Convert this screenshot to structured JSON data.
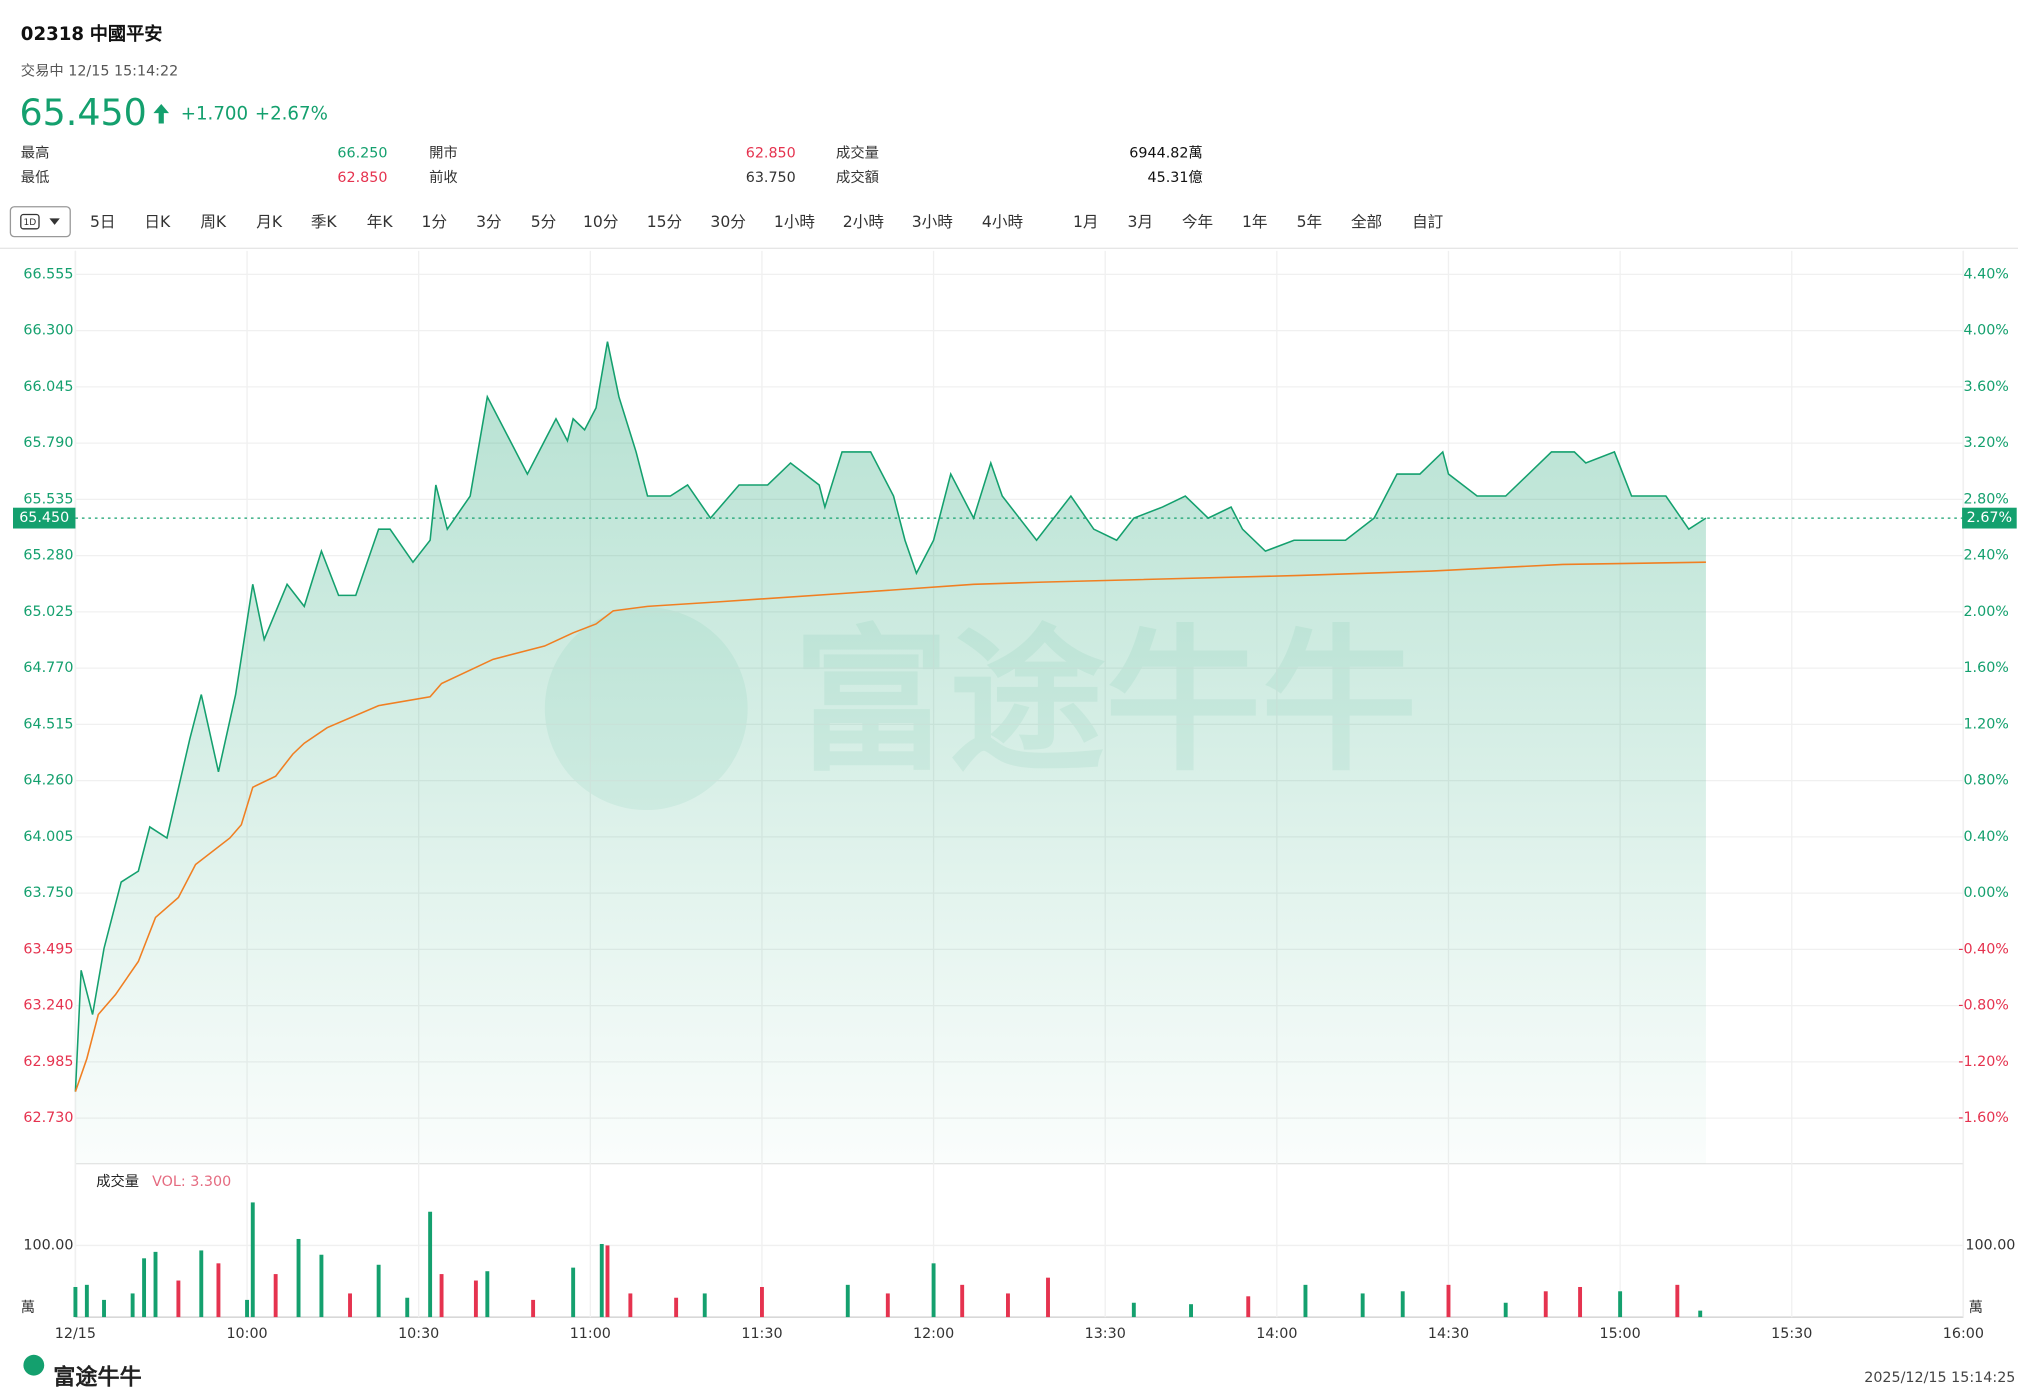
{
  "header": {
    "code": "02318",
    "name": "中國平安",
    "status": "交易中 12/15 15:14:22",
    "price": "65.450",
    "change": "+1.700",
    "change_pct": "+2.67%",
    "stats": [
      [
        "最高",
        "66.250",
        "開市",
        "62.850",
        "成交量",
        "6944.82萬"
      ],
      [
        "最低",
        "62.850",
        "前收",
        "63.750",
        "成交額",
        "45.31億"
      ]
    ]
  },
  "toolbar": {
    "selected": "1D",
    "buttons": [
      "5日",
      "日K",
      "周K",
      "月K",
      "季K",
      "年K",
      "1分",
      "3分",
      "5分",
      "10分",
      "15分",
      "30分",
      "1小時",
      "2小時",
      "3小時",
      "4小時",
      "1月",
      "3月",
      "今年",
      "1年",
      "5年",
      "全部",
      "自訂"
    ]
  },
  "chart_data": {
    "type": "line",
    "xlim": [
      0,
      330
    ],
    "xticks": [
      {
        "value": 0,
        "label": "12/15"
      },
      {
        "value": 30,
        "label": "10:00"
      },
      {
        "value": 60,
        "label": "10:30"
      },
      {
        "value": 90,
        "label": "11:00"
      },
      {
        "value": 120,
        "label": "11:30"
      },
      {
        "value": 150,
        "label": "12:00"
      },
      {
        "value": 180,
        "label": "13:30"
      },
      {
        "value": 210,
        "label": "14:00"
      },
      {
        "value": 240,
        "label": "14:30"
      },
      {
        "value": 270,
        "label": "15:00"
      },
      {
        "value": 300,
        "label": "15:30"
      },
      {
        "value": 330,
        "label": "16:00"
      }
    ],
    "ylim": [
      62.73,
      66.555
    ],
    "yticks": [
      {
        "value": 66.555,
        "label": "66.555"
      },
      {
        "value": 66.3,
        "label": "66.300"
      },
      {
        "value": 66.045,
        "label": "66.045"
      },
      {
        "value": 65.79,
        "label": "65.790"
      },
      {
        "value": 65.535,
        "label": "65.535"
      },
      {
        "value": 65.28,
        "label": "65.280"
      },
      {
        "value": 65.025,
        "label": "65.025"
      },
      {
        "value": 64.77,
        "label": "64.770"
      },
      {
        "value": 64.515,
        "label": "64.515"
      },
      {
        "value": 64.26,
        "label": "64.260"
      },
      {
        "value": 64.005,
        "label": "64.005"
      },
      {
        "value": 63.75,
        "label": "63.750"
      },
      {
        "value": 63.495,
        "label": "63.495"
      },
      {
        "value": 63.24,
        "label": "63.240"
      },
      {
        "value": 62.985,
        "label": "62.985"
      },
      {
        "value": 62.73,
        "label": "62.730"
      }
    ],
    "y2lim": [
      -1.6,
      4.4
    ],
    "y2ticks": [
      {
        "value": 4.4,
        "label": "4.40%"
      },
      {
        "value": 4,
        "label": "4.00%"
      },
      {
        "value": 3.6,
        "label": "3.60%"
      },
      {
        "value": 3.2,
        "label": "3.20%"
      },
      {
        "value": 2.8,
        "label": "2.80%"
      },
      {
        "value": 2.4,
        "label": "2.40%"
      },
      {
        "value": 2,
        "label": "2.00%"
      },
      {
        "value": 1.6,
        "label": "1.60%"
      },
      {
        "value": 1.2,
        "label": "1.20%"
      },
      {
        "value": 0.8,
        "label": "0.80%"
      },
      {
        "value": 0.4,
        "label": "0.40%"
      },
      {
        "value": 0,
        "label": "0.00%"
      },
      {
        "value": -0.4,
        "label": "-0.40%"
      },
      {
        "value": -0.8,
        "label": "-0.80%"
      },
      {
        "value": -1.2,
        "label": "-1.20%"
      },
      {
        "value": -1.6,
        "label": "-1.60%"
      }
    ],
    "current_pct_label": "2.67%",
    "grid": true,
    "up_color": "#14a06e",
    "down_color": "#e5334f",
    "series": [
      {
        "color": "#14a06e",
        "x": [
          0,
          1,
          3,
          5,
          8,
          11,
          13,
          16,
          20,
          22,
          25,
          28,
          31,
          33,
          37,
          40,
          43,
          46,
          49,
          53,
          55,
          59,
          62,
          63,
          65,
          69,
          72,
          76,
          79,
          82,
          84,
          86,
          87,
          89,
          91,
          93,
          95,
          98,
          100,
          104,
          107,
          111,
          116,
          121,
          125,
          130,
          131,
          134,
          139,
          143,
          145,
          147,
          150,
          153,
          157,
          160,
          162,
          168,
          174,
          178,
          182,
          185,
          190,
          194,
          198,
          202,
          204,
          208,
          213,
          220,
          222,
          227,
          231,
          235,
          239,
          240,
          245,
          250,
          258,
          262,
          264,
          269,
          272,
          278,
          282,
          285
        ],
        "values": [
          62.85,
          63.4,
          63.2,
          63.5,
          63.8,
          63.85,
          64.05,
          64.0,
          64.45,
          64.65,
          64.3,
          64.65,
          65.15,
          64.9,
          65.15,
          65.05,
          65.3,
          65.1,
          65.1,
          65.4,
          65.4,
          65.25,
          65.35,
          65.6,
          65.4,
          65.55,
          66.0,
          65.8,
          65.65,
          65.8,
          65.9,
          65.8,
          65.9,
          65.85,
          65.95,
          66.25,
          66.0,
          65.75,
          65.55,
          65.55,
          65.6,
          65.45,
          65.6,
          65.6,
          65.7,
          65.6,
          65.5,
          65.75,
          65.75,
          65.55,
          65.35,
          65.2,
          65.35,
          65.65,
          65.45,
          65.7,
          65.55,
          65.35,
          65.55,
          65.4,
          65.35,
          65.45,
          65.5,
          65.55,
          65.45,
          65.5,
          65.4,
          65.3,
          65.35,
          65.35,
          65.35,
          65.45,
          65.65,
          65.65,
          65.75,
          65.65,
          65.55,
          65.55,
          65.75,
          65.75,
          65.7,
          65.75,
          65.55,
          65.55,
          65.4,
          65.45
        ]
      },
      {
        "color": "#f07f22",
        "x": [
          0,
          2,
          4,
          7,
          11,
          14,
          18,
          21,
          27,
          29,
          31,
          35,
          38,
          40,
          44,
          53,
          62,
          64,
          73,
          82,
          87,
          91,
          94,
          100,
          112,
          135,
          157,
          169,
          214,
          237,
          260,
          285
        ],
        "values": [
          62.85,
          63.0,
          63.2,
          63.29,
          63.44,
          63.64,
          63.73,
          63.88,
          64.0,
          64.06,
          64.23,
          64.28,
          64.38,
          64.43,
          64.5,
          64.6,
          64.64,
          64.7,
          64.81,
          64.87,
          64.93,
          64.97,
          65.03,
          65.05,
          65.07,
          65.11,
          65.15,
          65.16,
          65.19,
          65.21,
          65.24,
          65.25
        ]
      }
    ],
    "volume": {
      "title": "成交量",
      "indicator": "VOL: 3.300",
      "unit": "萬",
      "ylim": [
        0,
        205
      ],
      "yticks": [
        {
          "value": 100,
          "label": "100.00"
        }
      ],
      "x": [
        0,
        2,
        5,
        10,
        12,
        14,
        18,
        22,
        25,
        30,
        31,
        35,
        39,
        43,
        48,
        53,
        58,
        62,
        64,
        70,
        72,
        80,
        87,
        92,
        93,
        97,
        105,
        110,
        120,
        135,
        142,
        150,
        155,
        163,
        170,
        185,
        195,
        205,
        215,
        225,
        232,
        240,
        250,
        257,
        263,
        270,
        280,
        284
      ],
      "values": [
        42,
        45,
        24,
        33,
        82,
        91,
        51,
        93,
        75,
        24,
        160,
        60,
        109,
        87,
        33,
        73,
        27,
        147,
        60,
        51,
        64,
        24,
        69,
        102,
        100,
        33,
        27,
        33,
        42,
        45,
        33,
        75,
        45,
        33,
        55,
        20,
        18,
        29,
        45,
        33,
        36,
        45,
        20,
        36,
        42,
        36,
        45,
        9
      ],
      "colors": [
        "#14a06e",
        "#14a06e",
        "#14a06e",
        "#14a06e",
        "#14a06e",
        "#14a06e",
        "#e5334f",
        "#14a06e",
        "#e5334f",
        "#14a06e",
        "#14a06e",
        "#e5334f",
        "#14a06e",
        "#14a06e",
        "#e5334f",
        "#14a06e",
        "#14a06e",
        "#14a06e",
        "#e5334f",
        "#e5334f",
        "#14a06e",
        "#e5334f",
        "#14a06e",
        "#14a06e",
        "#e5334f",
        "#e5334f",
        "#e5334f",
        "#14a06e",
        "#e5334f",
        "#14a06e",
        "#e5334f",
        "#14a06e",
        "#e5334f",
        "#e5334f",
        "#e5334f",
        "#14a06e",
        "#14a06e",
        "#e5334f",
        "#14a06e",
        "#14a06e",
        "#14a06e",
        "#e5334f",
        "#14a06e",
        "#e5334f",
        "#e5334f",
        "#14a06e",
        "#e5334f",
        "#14a06e"
      ]
    }
  },
  "footer": {
    "logo": "富途牛牛",
    "timestamp": "2025/12/15 15:14:25"
  }
}
